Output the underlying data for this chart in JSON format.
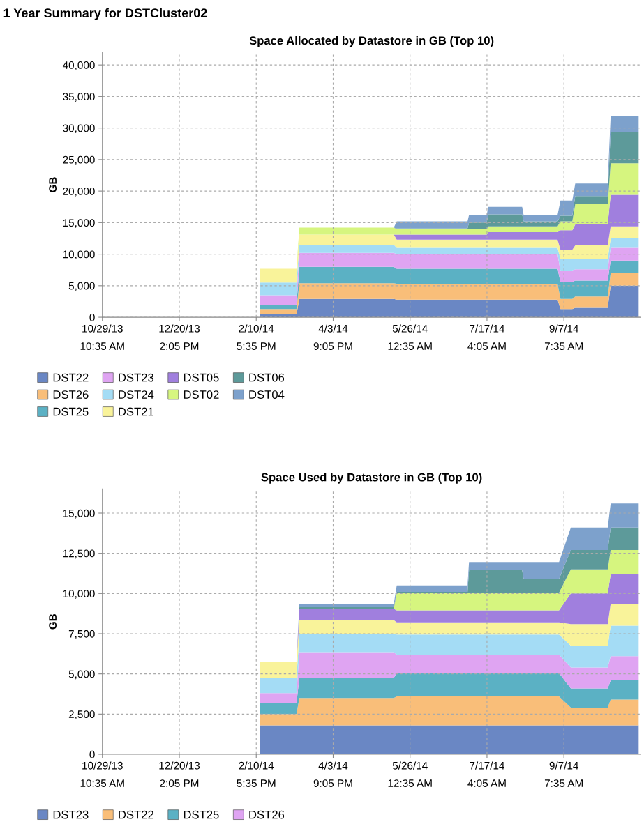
{
  "chart_data": [
    {
      "type": "area",
      "stacked": true,
      "title": "Space Allocated by Datastore in GB (Top 10)",
      "ylabel": "GB",
      "annotations": [
        "1 Year Summary for DSTCluster02"
      ],
      "grid": true,
      "legend": "bottom",
      "xlim": [
        "2013-10-29T10:35",
        "2014-10-29T10:35"
      ],
      "xticks": [
        {
          "value": "2013-10-29T10:35",
          "label": "10/29/13\n10:35 AM"
        },
        {
          "value": "2013-12-20T14:05",
          "label": "12/20/13\n2:05 PM"
        },
        {
          "value": "2014-02-10T17:35",
          "label": "2/10/14\n5:35 PM"
        },
        {
          "value": "2014-04-03T21:05",
          "label": "4/3/14\n9:05 PM"
        },
        {
          "value": "2014-05-26T00:35",
          "label": "5/26/14\n12:35 AM"
        },
        {
          "value": "2014-07-17T04:05",
          "label": "7/17/14\n4:05 AM"
        },
        {
          "value": "2014-09-07T07:35",
          "label": "9/7/14\n7:35 AM"
        }
      ],
      "ylim": [
        0,
        42000
      ],
      "yticks": [
        {
          "value": 0,
          "label": "0"
        },
        {
          "value": 5000,
          "label": "5,000"
        },
        {
          "value": 10000,
          "label": "10,000"
        },
        {
          "value": 15000,
          "label": "15,000"
        },
        {
          "value": 20000,
          "label": "20,000"
        },
        {
          "value": 25000,
          "label": "25,000"
        },
        {
          "value": 30000,
          "label": "30,000"
        },
        {
          "value": 35000,
          "label": "35,000"
        },
        {
          "value": 40000,
          "label": "40,000"
        }
      ],
      "x": [
        "2014-02-13",
        "2014-03-10",
        "2014-03-12",
        "2014-05-15",
        "2014-05-17",
        "2014-07-04",
        "2014-07-05",
        "2014-07-17",
        "2014-07-18",
        "2014-08-10",
        "2014-08-11",
        "2014-09-03",
        "2014-09-05",
        "2014-09-13",
        "2014-09-15",
        "2014-10-07",
        "2014-10-09",
        "2014-10-28"
      ],
      "series": [
        {
          "name": "DST22",
          "color": "#6a87c4",
          "values": [
            500,
            500,
            2900,
            2900,
            2800,
            2800,
            2800,
            2800,
            2800,
            2800,
            2800,
            2800,
            1300,
            1300,
            1500,
            1500,
            5000,
            5000
          ]
        },
        {
          "name": "DST26",
          "color": "#f9be79",
          "values": [
            800,
            800,
            2500,
            2500,
            2500,
            2500,
            2500,
            2500,
            2500,
            2500,
            2500,
            2500,
            1600,
            1600,
            1800,
            1800,
            2000,
            2000
          ]
        },
        {
          "name": "DST25",
          "color": "#5bb1c4",
          "values": [
            700,
            700,
            2600,
            2600,
            2400,
            2400,
            2400,
            2400,
            2400,
            2400,
            2400,
            2400,
            2700,
            2700,
            2500,
            2500,
            2000,
            2000
          ]
        },
        {
          "name": "DST23",
          "color": "#dfa4f2",
          "values": [
            1500,
            1500,
            2200,
            2200,
            2300,
            2300,
            2300,
            2300,
            2300,
            2300,
            2300,
            2300,
            1700,
            1700,
            1800,
            1800,
            2000,
            2000
          ]
        },
        {
          "name": "DST24",
          "color": "#a4dcf5",
          "values": [
            2000,
            2000,
            1300,
            1300,
            1000,
            1000,
            1000,
            1000,
            1000,
            1000,
            1000,
            1000,
            1900,
            1900,
            1600,
            1600,
            1500,
            1500
          ]
        },
        {
          "name": "DST21",
          "color": "#f9f39a",
          "values": [
            2200,
            2200,
            1600,
            1600,
            1300,
            1300,
            1300,
            1300,
            1300,
            1300,
            1300,
            1300,
            1500,
            1500,
            2200,
            2200,
            1900,
            1900
          ]
        },
        {
          "name": "DST05",
          "color": "#a07fde",
          "values": [
            0,
            0,
            0,
            0,
            800,
            800,
            800,
            800,
            1200,
            1200,
            1200,
            1200,
            3100,
            3100,
            3300,
            3300,
            5000,
            5000
          ]
        },
        {
          "name": "DST02",
          "color": "#d6f57f",
          "values": [
            0,
            0,
            1100,
            1100,
            900,
            900,
            900,
            900,
            900,
            900,
            900,
            900,
            1400,
            1400,
            3200,
            3200,
            5000,
            5000
          ]
        },
        {
          "name": "DST06",
          "color": "#5d9a9a",
          "values": [
            0,
            0,
            0,
            0,
            100,
            100,
            1000,
            1000,
            1900,
            1900,
            800,
            800,
            900,
            900,
            1300,
            1300,
            5000,
            5000
          ]
        },
        {
          "name": "DST04",
          "color": "#7da1cc",
          "values": [
            0,
            0,
            0,
            0,
            1100,
            1100,
            1200,
            1200,
            1200,
            1200,
            1000,
            1000,
            2400,
            2400,
            2000,
            2000,
            2500,
            2500
          ]
        }
      ]
    },
    {
      "type": "area",
      "stacked": true,
      "title": "Space Used by Datastore in GB (Top 10)",
      "ylabel": "GB",
      "grid": true,
      "legend": "bottom",
      "xlim": [
        "2013-10-29T10:35",
        "2014-10-29T10:35"
      ],
      "xticks": [
        {
          "value": "2013-10-29T10:35",
          "label": "10/29/13\n10:35 AM"
        },
        {
          "value": "2013-12-20T14:05",
          "label": "12/20/13\n2:05 PM"
        },
        {
          "value": "2014-02-10T17:35",
          "label": "2/10/14\n5:35 PM"
        },
        {
          "value": "2014-04-03T21:05",
          "label": "4/3/14\n9:05 PM"
        },
        {
          "value": "2014-05-26T00:35",
          "label": "5/26/14\n12:35 AM"
        },
        {
          "value": "2014-07-17T04:05",
          "label": "7/17/14\n4:05 AM"
        },
        {
          "value": "2014-09-07T07:35",
          "label": "9/7/14\n7:35 AM"
        }
      ],
      "ylim": [
        0,
        16500
      ],
      "yticks": [
        {
          "value": 0,
          "label": "0"
        },
        {
          "value": 2500,
          "label": "2,500"
        },
        {
          "value": 5000,
          "label": "5,000"
        },
        {
          "value": 7500,
          "label": "7,500"
        },
        {
          "value": 10000,
          "label": "10,000"
        },
        {
          "value": 12500,
          "label": "12,500"
        },
        {
          "value": 15000,
          "label": "15,000"
        }
      ],
      "x": [
        "2014-02-13",
        "2014-03-10",
        "2014-03-12",
        "2014-05-15",
        "2014-05-17",
        "2014-07-04",
        "2014-07-05",
        "2014-08-10",
        "2014-08-11",
        "2014-09-04",
        "2014-09-12",
        "2014-10-07",
        "2014-10-09",
        "2014-10-28"
      ],
      "series": [
        {
          "name": "DST23",
          "color": "#6a87c4",
          "values": [
            1800,
            1800,
            1800,
            1800,
            1800,
            1800,
            1800,
            1800,
            1800,
            1800,
            1800,
            1800,
            1800,
            1800
          ]
        },
        {
          "name": "DST22",
          "color": "#f9be79",
          "values": [
            700,
            700,
            1700,
            1700,
            1800,
            1800,
            1800,
            1800,
            1800,
            1800,
            1100,
            1100,
            1600,
            1600
          ]
        },
        {
          "name": "DST25",
          "color": "#5bb1c4",
          "values": [
            700,
            700,
            1250,
            1250,
            1450,
            1450,
            1450,
            1450,
            1450,
            1450,
            1200,
            1200,
            1200,
            1200
          ]
        },
        {
          "name": "DST26",
          "color": "#dfa4f2",
          "values": [
            600,
            600,
            1600,
            1600,
            1150,
            1150,
            1150,
            1150,
            1150,
            1150,
            1300,
            1300,
            1500,
            1500
          ]
        },
        {
          "color": "#a4dcf5",
          "values": [
            950,
            950,
            1150,
            1150,
            1250,
            1250,
            1250,
            1250,
            1250,
            1250,
            1350,
            1350,
            1900,
            1900
          ]
        },
        {
          "color": "#f9f39a",
          "values": [
            1000,
            1000,
            850,
            850,
            750,
            750,
            750,
            750,
            750,
            750,
            1350,
            1350,
            1350,
            1350
          ]
        },
        {
          "color": "#a07fde",
          "values": [
            0,
            0,
            700,
            700,
            750,
            750,
            750,
            750,
            750,
            750,
            1900,
            1900,
            1850,
            1850
          ]
        },
        {
          "color": "#d6f57f",
          "values": [
            0,
            0,
            0,
            0,
            1100,
            1100,
            1100,
            1100,
            1100,
            1100,
            1500,
            1500,
            1500,
            1500
          ]
        },
        {
          "color": "#5d9a9a",
          "values": [
            0,
            0,
            100,
            100,
            50,
            50,
            1400,
            1400,
            850,
            850,
            1200,
            1200,
            1400,
            1400
          ]
        },
        {
          "color": "#7da1cc",
          "values": [
            0,
            0,
            200,
            200,
            400,
            400,
            500,
            500,
            1050,
            1050,
            1400,
            1400,
            1500,
            1500
          ]
        }
      ]
    }
  ]
}
